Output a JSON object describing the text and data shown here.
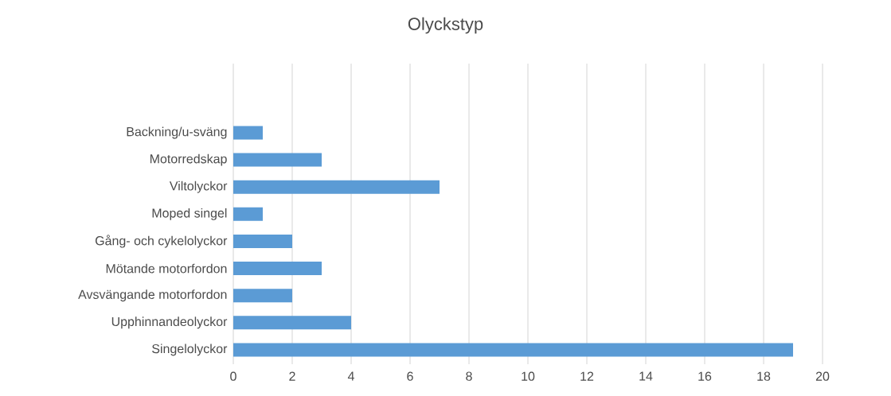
{
  "chart_data": {
    "type": "bar",
    "orientation": "horizontal",
    "title": "Olyckstyp",
    "categories": [
      "Backning/u-sväng",
      "Motorredskap",
      "Viltolyckor",
      "Moped singel",
      "Gång- och cykelolyckor",
      "Mötande motorfordon",
      "Avsvängande motorfordon",
      "Upphinnandeolyckor",
      "Singelolyckor"
    ],
    "values": [
      1,
      3,
      7,
      1,
      2,
      3,
      2,
      4,
      19
    ],
    "color": "#5b9bd5",
    "xlim": [
      0,
      20
    ],
    "xticks": [
      0,
      2,
      4,
      6,
      8,
      10,
      12,
      14,
      16,
      18,
      20
    ],
    "grid": "x"
  }
}
